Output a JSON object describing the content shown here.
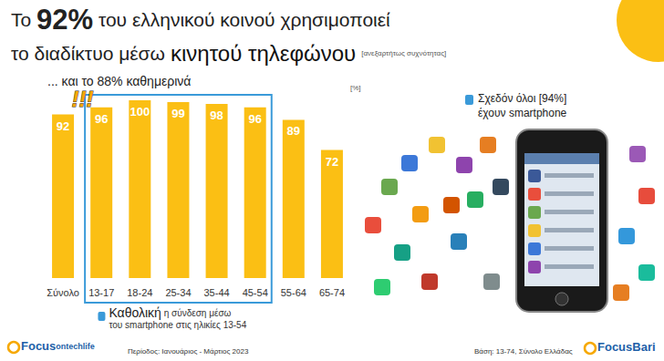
{
  "chart_data": {
    "type": "bar",
    "title": [
      "Το 92% του ελληνικού κοινού χρησιμοποιεί",
      "το διαδίκτυο μέσω κινητού τηλεφώνου"
    ],
    "subtitle": "[ανεξαρτήτως συχνότητας]",
    "annotations": [
      "... και το 88% καθημερινά",
      "!!!",
      "[%]",
      "Σχεδόν όλοι [94%]\nέχουν smartphone",
      "Καθολική η σύνδεση μέσω\nτου smartphone στις ηλικίες 13-54",
      "Focus ontechlife",
      "Περίοδος: Ιανουάριος - Μάρτιος 2023",
      "Βάση: 13-74, Σύνολο Ελλάδας",
      "FocusBari"
    ],
    "categories": [
      "Σύνολο",
      "13-17",
      "18-24",
      "25-34",
      "35-44",
      "45-54",
      "55-64",
      "65-74"
    ],
    "values": [
      92,
      96,
      100,
      99,
      98,
      96,
      89,
      72
    ],
    "color": "#fbbf14",
    "ylim": [
      0,
      100
    ],
    "grid": false,
    "data_labels": true,
    "tick_labels": "x"
  }
}
